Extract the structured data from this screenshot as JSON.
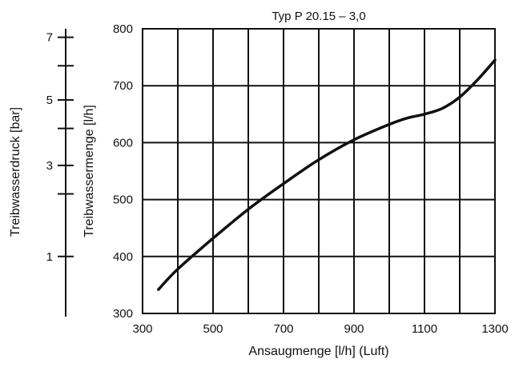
{
  "chart_data": {
    "type": "line",
    "title": "Typ P 20.15 – 3,0",
    "xlabel": "Ansaugmenge [l/h]  (Luft)",
    "ylabel": "Treibwassermenge [l/h]",
    "y2label": "Treibwasserdruck [bar]",
    "xlim": [
      300,
      1300
    ],
    "ylim": [
      300,
      800
    ],
    "x_ticks": [
      300,
      500,
      700,
      900,
      1100,
      1300
    ],
    "x_tick_labels": [
      "300",
      "500",
      "700",
      "900",
      "1100",
      "1300"
    ],
    "x_grid": [
      300,
      400,
      500,
      600,
      700,
      800,
      900,
      1000,
      1100,
      1200,
      1300
    ],
    "y_ticks": [
      300,
      400,
      500,
      600,
      700,
      800
    ],
    "y_tick_labels": [
      "300",
      "400",
      "500",
      "600",
      "700",
      "800"
    ],
    "y_grid": [
      300,
      400,
      500,
      600,
      700,
      800
    ],
    "pressure_axis": {
      "labeled_ticks": [
        {
          "label": "1",
          "flow": 400
        },
        {
          "label": "3",
          "flow": 560
        },
        {
          "label": "5",
          "flow": 675
        },
        {
          "label": "7",
          "flow": 785
        }
      ],
      "unlabeled_ticks": [
        {
          "flow": 510
        },
        {
          "flow": 625
        },
        {
          "flow": 735
        }
      ]
    },
    "series": [
      {
        "x": [
          345,
          400,
          500,
          600,
          700,
          800,
          900,
          1000,
          1050,
          1100,
          1150,
          1200,
          1250,
          1300
        ],
        "values": [
          342,
          378,
          432,
          483,
          528,
          570,
          605,
          632,
          643,
          650,
          660,
          680,
          710,
          745
        ]
      }
    ],
    "grid": true
  }
}
